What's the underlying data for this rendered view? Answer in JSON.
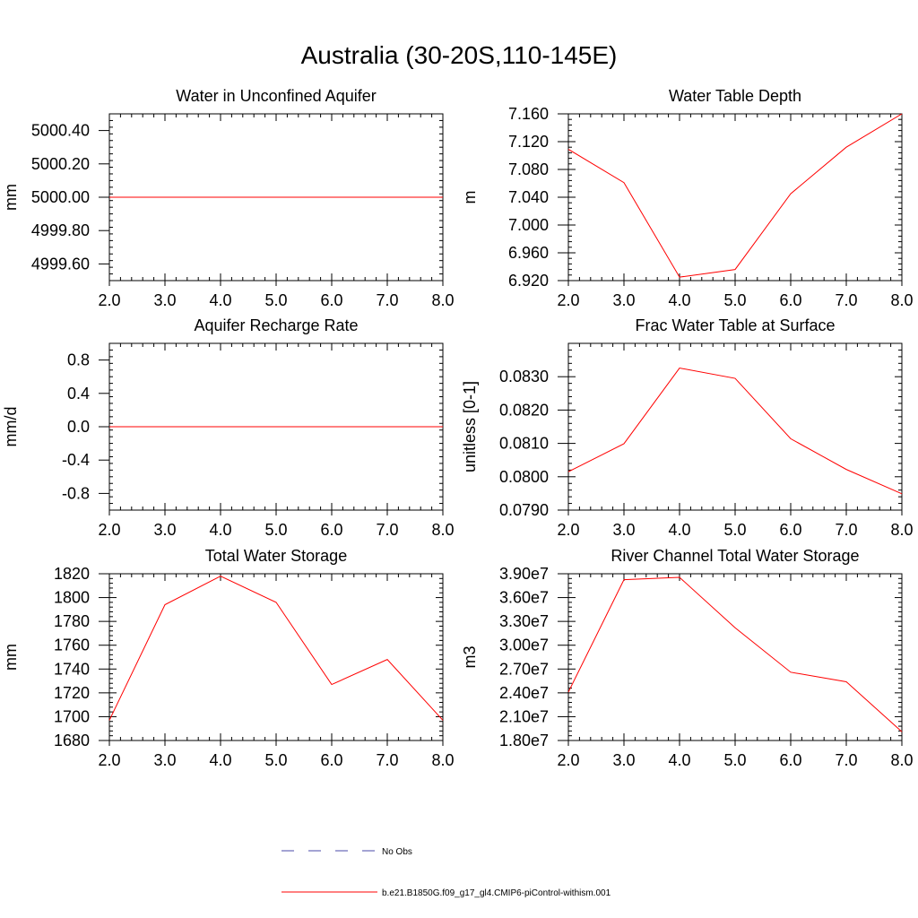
{
  "figure": {
    "title": "Australia (30-20S,110-145E)",
    "legend": [
      {
        "label": "No Obs",
        "color": "#4a4aa8",
        "dash": true
      },
      {
        "label": "b.e21.B1850G.f09_g17_gl4.CMIP6-piControl-withism.001",
        "color": "#ff0000",
        "dash": false
      }
    ]
  },
  "chart_data": [
    {
      "type": "line",
      "title": "Water in Unconfined Aquifer",
      "ylabel": "mm",
      "x": [
        2,
        3,
        4,
        5,
        6,
        7,
        8
      ],
      "xticks": [
        "2.0",
        "3.0",
        "4.0",
        "5.0",
        "6.0",
        "7.0",
        "8.0"
      ],
      "xlim": [
        2,
        8
      ],
      "yticks": [
        4999.6,
        4999.8,
        5000.0,
        5000.2,
        5000.4
      ],
      "ytick_labels": [
        "4999.60",
        "4999.80",
        "5000.00",
        "5000.20",
        "5000.40"
      ],
      "ylim": [
        4999.5,
        5000.5
      ],
      "series": [
        {
          "values": [
            5000,
            5000,
            5000,
            5000,
            5000,
            5000,
            5000
          ],
          "color": "#ff0000"
        }
      ]
    },
    {
      "type": "line",
      "title": "Water Table Depth",
      "ylabel": "m",
      "x": [
        2,
        3,
        4,
        5,
        6,
        7,
        8
      ],
      "xticks": [
        "2.0",
        "3.0",
        "4.0",
        "5.0",
        "6.0",
        "7.0",
        "8.0"
      ],
      "xlim": [
        2,
        8
      ],
      "yticks": [
        6.92,
        6.96,
        7.0,
        7.04,
        7.08,
        7.12,
        7.16
      ],
      "ytick_labels": [
        "6.920",
        "6.960",
        "7.000",
        "7.040",
        "7.080",
        "7.120",
        "7.160"
      ],
      "ylim": [
        6.92,
        7.16
      ],
      "series": [
        {
          "values": [
            7.109,
            7.061,
            6.925,
            6.936,
            7.045,
            7.112,
            7.16
          ],
          "color": "#ff0000"
        }
      ]
    },
    {
      "type": "line",
      "title": "Aquifer Recharge Rate",
      "ylabel": "mm/d",
      "x": [
        2,
        3,
        4,
        5,
        6,
        7,
        8
      ],
      "xticks": [
        "2.0",
        "3.0",
        "4.0",
        "5.0",
        "6.0",
        "7.0",
        "8.0"
      ],
      "xlim": [
        2,
        8
      ],
      "yticks": [
        -0.8,
        -0.4,
        0.0,
        0.4,
        0.8
      ],
      "ytick_labels": [
        "-0.8",
        "-0.4",
        "0.0",
        "0.4",
        "0.8"
      ],
      "ylim": [
        -1.0,
        1.0
      ],
      "series": [
        {
          "values": [
            0,
            0,
            0,
            0,
            0,
            0,
            0
          ],
          "color": "#ff0000"
        }
      ]
    },
    {
      "type": "line",
      "title": "Frac Water Table at Surface",
      "ylabel": "unitless [0-1]",
      "x": [
        2,
        3,
        4,
        5,
        6,
        7,
        8
      ],
      "xticks": [
        "2.0",
        "3.0",
        "4.0",
        "5.0",
        "6.0",
        "7.0",
        "8.0"
      ],
      "xlim": [
        2,
        8
      ],
      "yticks": [
        0.079,
        0.08,
        0.081,
        0.082,
        0.083
      ],
      "ytick_labels": [
        "0.0790",
        "0.0800",
        "0.0810",
        "0.0820",
        "0.0830"
      ],
      "ylim": [
        0.079,
        0.084
      ],
      "series": [
        {
          "values": [
            0.08015,
            0.08099,
            0.08326,
            0.08295,
            0.08114,
            0.08022,
            0.07949
          ],
          "color": "#ff0000"
        }
      ]
    },
    {
      "type": "line",
      "title": "Total Water Storage",
      "ylabel": "mm",
      "x": [
        2,
        3,
        4,
        5,
        6,
        7,
        8
      ],
      "xticks": [
        "2.0",
        "3.0",
        "4.0",
        "5.0",
        "6.0",
        "7.0",
        "8.0"
      ],
      "xlim": [
        2,
        8
      ],
      "yticks": [
        1680,
        1700,
        1720,
        1740,
        1760,
        1780,
        1800,
        1820
      ],
      "ytick_labels": [
        "1680",
        "1700",
        "1720",
        "1740",
        "1760",
        "1780",
        "1800",
        "1820"
      ],
      "ylim": [
        1680,
        1820
      ],
      "series": [
        {
          "values": [
            1697,
            1794,
            1818,
            1796,
            1727,
            1748,
            1697
          ],
          "color": "#ff0000"
        }
      ]
    },
    {
      "type": "line",
      "title": "River Channel Total Water Storage",
      "ylabel": "m3",
      "x": [
        2,
        3,
        4,
        5,
        6,
        7,
        8
      ],
      "xticks": [
        "2.0",
        "3.0",
        "4.0",
        "5.0",
        "6.0",
        "7.0",
        "8.0"
      ],
      "xlim": [
        2,
        8
      ],
      "yticks": [
        18000000,
        21000000,
        24000000,
        27000000,
        30000000,
        33000000,
        36000000,
        39000000
      ],
      "ytick_labels": [
        "1.80e7",
        "2.10e7",
        "2.40e7",
        "2.70e7",
        "3.00e7",
        "3.30e7",
        "3.60e7",
        "3.90e7"
      ],
      "ylim": [
        18000000,
        39000000
      ],
      "series": [
        {
          "values": [
            24100000,
            38250000,
            38550000,
            32200000,
            26600000,
            25400000,
            19100000
          ],
          "color": "#ff0000"
        }
      ]
    }
  ]
}
